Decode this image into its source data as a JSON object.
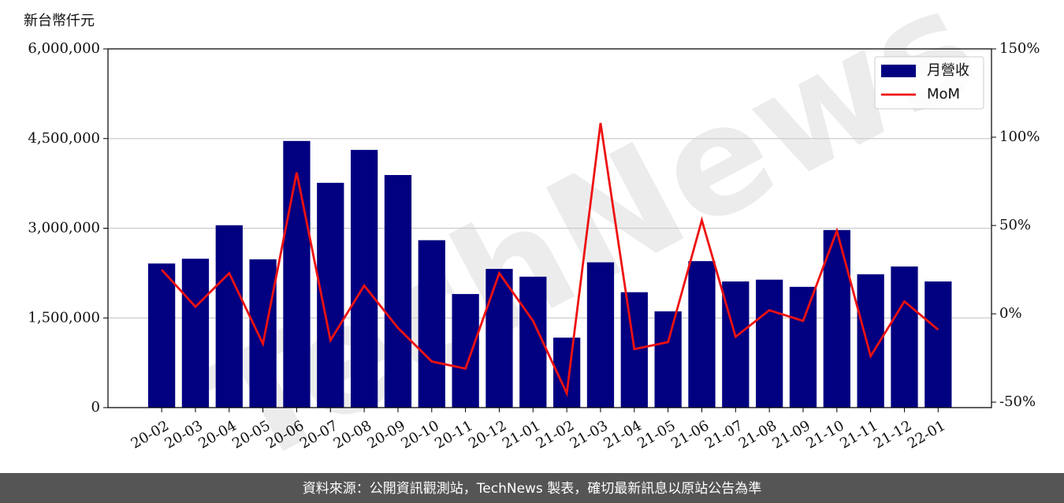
{
  "chart_data": {
    "type": "bar",
    "y_label": "新台幣仟元",
    "watermark": "TechNews",
    "footer": "資料來源：公開資訊觀測站，TechNews 製表，確切最新訊息以原站公告為準",
    "categories": [
      "20-02",
      "20-03",
      "20-04",
      "20-05",
      "20-06",
      "20-07",
      "20-08",
      "20-09",
      "20-10",
      "20-11",
      "20-12",
      "21-01",
      "21-02",
      "21-03",
      "21-04",
      "21-05",
      "21-06",
      "21-07",
      "21-08",
      "21-09",
      "21-10",
      "21-11",
      "21-12",
      "22-01"
    ],
    "series": [
      {
        "name": "月營收",
        "type": "bar",
        "color": "#000080",
        "values": [
          2410000,
          2490000,
          3050000,
          2480000,
          4460000,
          3760000,
          4310000,
          3890000,
          2800000,
          1900000,
          2320000,
          2190000,
          1170000,
          2430000,
          1930000,
          1610000,
          2450000,
          2110000,
          2140000,
          2020000,
          2970000,
          2230000,
          2360000,
          2110000
        ]
      },
      {
        "name": "MoM",
        "type": "line",
        "color": "#ee1111",
        "axis": "y2",
        "values": [
          25,
          4,
          23,
          -17,
          80,
          -15,
          16,
          -8,
          -27,
          -31,
          23,
          -4,
          -45,
          108,
          -20,
          -16,
          53,
          -13,
          2,
          -4,
          47,
          -24,
          7,
          -9
        ]
      }
    ],
    "ylim": [
      0,
      6000000
    ],
    "yticks": [
      0,
      {
        "value": 1500000,
        "label": "1,500,000"
      },
      {
        "value": 3000000,
        "label": "3,000,000"
      },
      {
        "value": 4500000,
        "label": "4,500,000"
      },
      {
        "value": 6000000,
        "label": "6,000,000"
      }
    ],
    "y2lim": [
      -53.1,
      150
    ],
    "y2ticks": [
      {
        "value": -50,
        "label": "-50%"
      },
      {
        "value": 0,
        "label": "0%"
      },
      {
        "value": 50,
        "label": "50%"
      },
      {
        "value": 100,
        "label": "100%"
      },
      {
        "value": 150,
        "label": "150%"
      }
    ],
    "grid": true,
    "legend": "upper-right"
  }
}
